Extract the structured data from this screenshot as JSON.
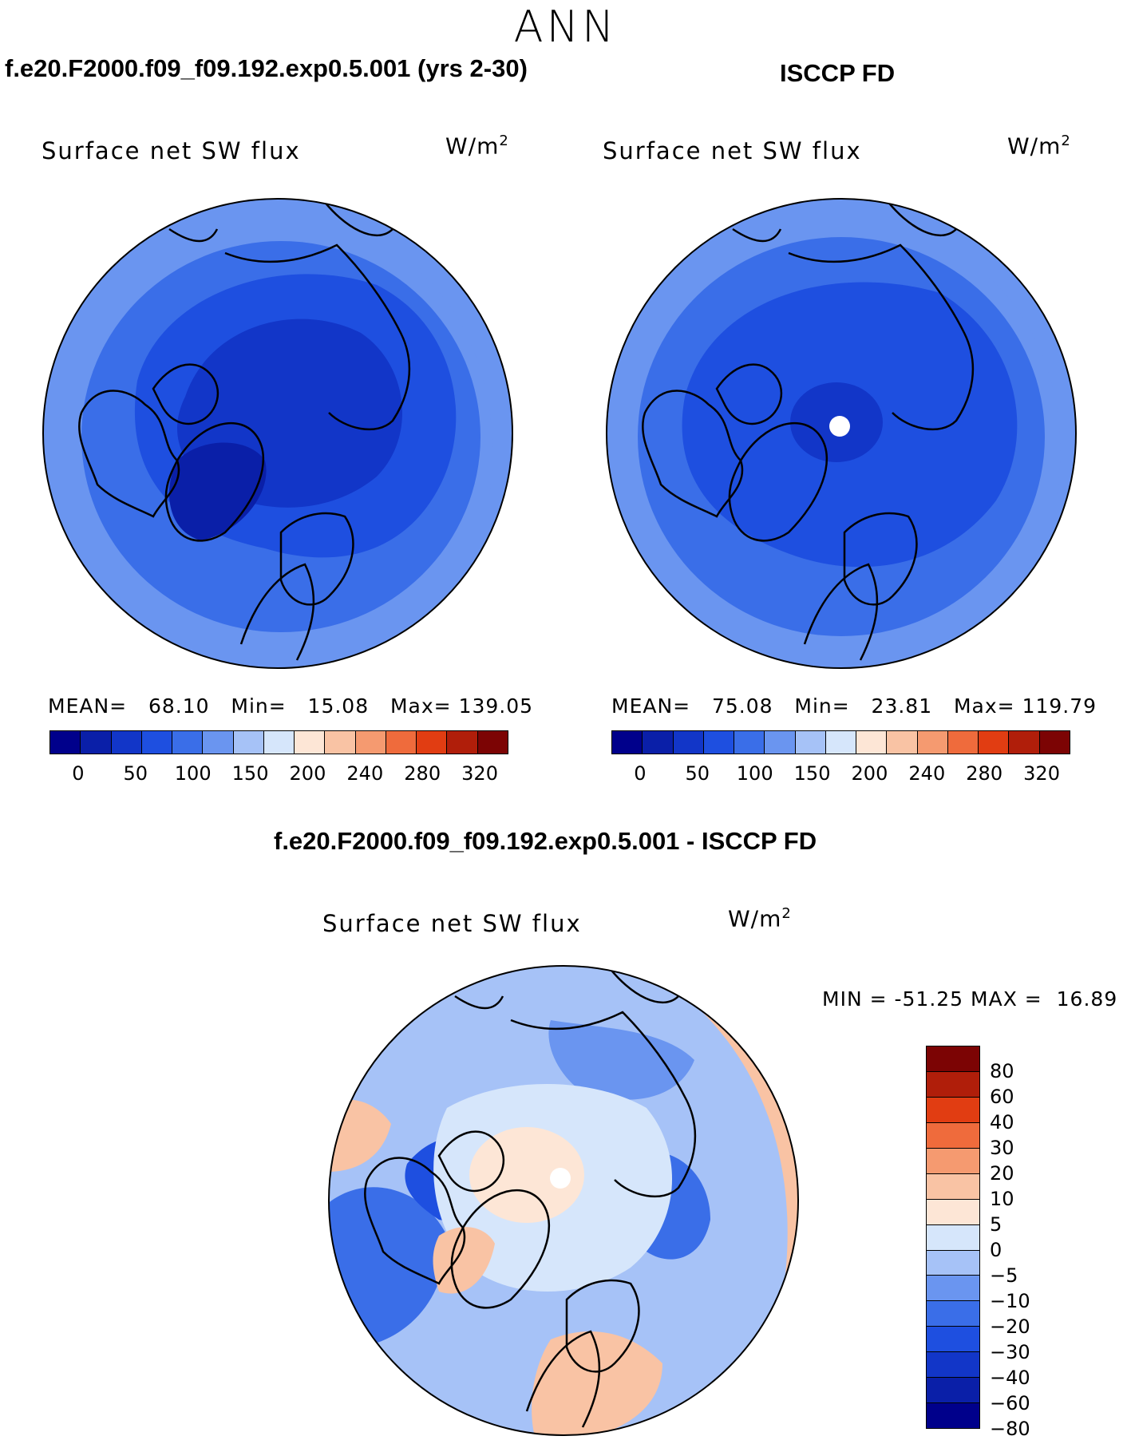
{
  "season": "ANN",
  "panels": {
    "model": {
      "case_title": "f.e20.F2000.f09_f09.192.exp0.5.001 (yrs 2-30)",
      "variable": "Surface net SW flux",
      "units": "W/m",
      "units_exp": "2",
      "stats": {
        "mean_label": "MEAN=",
        "mean": "68.10",
        "min_label": "Min=",
        "min": "15.08",
        "max_label": "Max=",
        "max": "139.05"
      }
    },
    "obs": {
      "case_title": "ISCCP FD",
      "variable": "Surface net SW flux",
      "units": "W/m",
      "units_exp": "2",
      "stats": {
        "mean_label": "MEAN=",
        "mean": "75.08",
        "min_label": "Min=",
        "min": "23.81",
        "max_label": "Max=",
        "max": "119.79"
      }
    },
    "diff": {
      "case_title": "f.e20.F2000.f09_f09.192.exp0.5.001 - ISCCP FD",
      "variable": "Surface net SW flux",
      "units": "W/m",
      "units_exp": "2",
      "minmax": {
        "min_label": "MIN =",
        "min": "-51.25",
        "max_label": "MAX =",
        "max": "16.89"
      }
    }
  },
  "colorbar_main": {
    "colors": [
      "#00008b",
      "#0a1fa8",
      "#1236c8",
      "#1e4fe0",
      "#3a6ee8",
      "#6a95f0",
      "#a6c2f7",
      "#d6e6fb",
      "#fde6d6",
      "#f9c3a4",
      "#f59a70",
      "#ef6b3c",
      "#e13d12",
      "#b01e0a",
      "#7c0404"
    ],
    "tick_labels": [
      "0",
      "50",
      "100",
      "150",
      "200",
      "240",
      "280",
      "320"
    ]
  },
  "colorbar_diff": {
    "colors": [
      "#7c0404",
      "#b01e0a",
      "#e13d12",
      "#ef6b3c",
      "#f59a70",
      "#f9c3a4",
      "#fde6d6",
      "#d6e6fb",
      "#a6c2f7",
      "#6a95f0",
      "#3a6ee8",
      "#1e4fe0",
      "#1236c8",
      "#0a1fa8",
      "#00008b"
    ],
    "tick_labels": [
      "80",
      "60",
      "40",
      "30",
      "20",
      "10",
      "5",
      "0",
      "−5",
      "−10",
      "−20",
      "−30",
      "−40",
      "−60",
      "−80"
    ]
  },
  "map_colors": {
    "ocean_outer_model": "#3a6ee8",
    "outer_rim_model": "#6a95f0",
    "inner_model": "#1e4fe0",
    "core_model": "#1236c8",
    "ocean_outer_obs": "#3a6ee8",
    "outer_rim_obs": "#6a95f0",
    "inner_obs": "#1e4fe0",
    "core_obs": "#1236c8",
    "diff_base": "#a6c2f7",
    "diff_light": "#d6e6fb",
    "diff_warm": "#fde6d6",
    "diff_orange": "#f9c3a4",
    "diff_blue": "#6a95f0",
    "diff_dark": "#3a6ee8"
  }
}
